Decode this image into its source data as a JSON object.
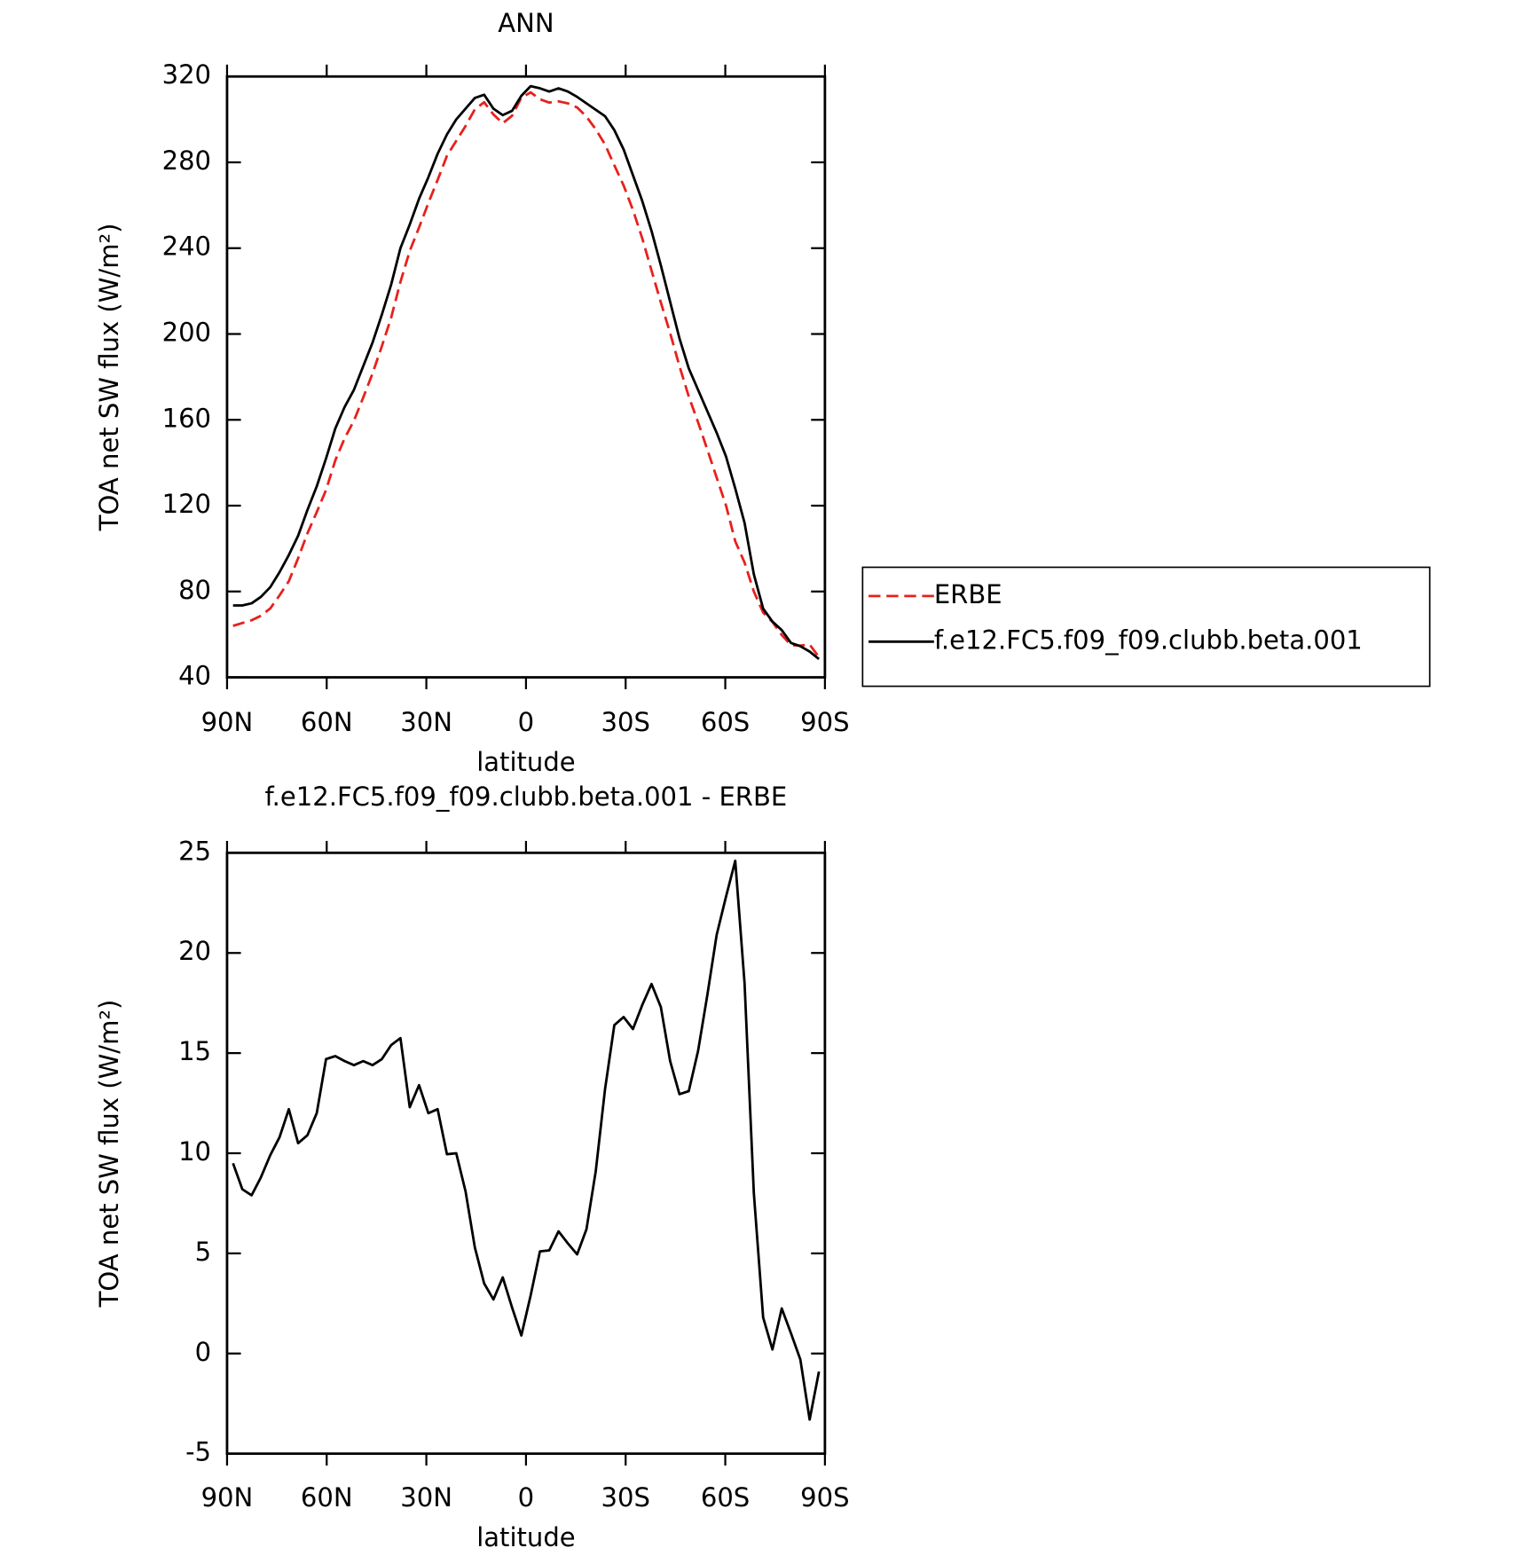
{
  "chart_data": [
    {
      "type": "line",
      "title": "ANN",
      "xlabel": "latitude",
      "ylabel": "TOA net SW flux (W/m²)",
      "x": [
        88.2,
        85.4,
        82.6,
        79.8,
        77,
        74.2,
        71.4,
        68.6,
        65.8,
        63,
        60.2,
        57.4,
        54.6,
        51.8,
        49,
        46.2,
        43.4,
        40.6,
        37.8,
        35,
        32.2,
        29.4,
        26.6,
        23.8,
        21,
        18.2,
        15.4,
        12.6,
        9.8,
        7,
        4.2,
        1.4,
        -1.4,
        -4.2,
        -7,
        -9.8,
        -12.6,
        -15.4,
        -18.2,
        -21,
        -23.8,
        -26.6,
        -29.4,
        -32.2,
        -35,
        -37.8,
        -40.6,
        -43.4,
        -46.2,
        -49,
        -51.8,
        -54.6,
        -57.4,
        -60.2,
        -63,
        -65.8,
        -68.6,
        -71.4,
        -74.2,
        -77,
        -79.8,
        -82.6,
        -85.4,
        -88.2
      ],
      "series": [
        {
          "name": "ERBE",
          "color": "#e8201c",
          "line_style": "dashed",
          "values": [
            64,
            65.3,
            66.6,
            68.7,
            72.1,
            78.2,
            84.8,
            95.5,
            107.1,
            117,
            127.3,
            141.15,
            151.4,
            159.6,
            170.4,
            181.6,
            194.3,
            207.6,
            224.25,
            238.7,
            249.6,
            261,
            271.8,
            283.05,
            290,
            296.9,
            304.7,
            308,
            302.3,
            298.2,
            301.7,
            310.1,
            312.6,
            309.4,
            307.85,
            308.4,
            307.5,
            305.55,
            301.3,
            295.4,
            288.3,
            278.6,
            269.2,
            257.8,
            244.6,
            229.55,
            214.7,
            200.4,
            185.05,
            170.9,
            158.9,
            146.1,
            133.1,
            120.2,
            103.4,
            93.5,
            80,
            70.2,
            65.8,
            59.75,
            55,
            54.8,
            55.3,
            49.4
          ]
        },
        {
          "name": "f.e12.FC5.f09_f09.clubb.beta.001",
          "color": "#000000",
          "line_style": "solid",
          "values": [
            73.5,
            73.5,
            74.5,
            77.5,
            82,
            89,
            97,
            106,
            118,
            129,
            142,
            156,
            166,
            174,
            185,
            196,
            209,
            223,
            240,
            251,
            263,
            273,
            284,
            293,
            300,
            305,
            310,
            311.5,
            305,
            302,
            304,
            311,
            315.5,
            314.5,
            313,
            314.5,
            313,
            310.5,
            307.5,
            304.5,
            301.5,
            295,
            286,
            274,
            262,
            248,
            232,
            215,
            198,
            184,
            174,
            164,
            154,
            143,
            128,
            112,
            88,
            72,
            66,
            62,
            56,
            54.5,
            52,
            48.5
          ]
        }
      ],
      "xlim": [
        90,
        -90
      ],
      "xticks": [
        {
          "value": 90,
          "label": "90N"
        },
        {
          "value": 60,
          "label": "60N"
        },
        {
          "value": 30,
          "label": "30N"
        },
        0,
        {
          "value": -30,
          "label": "30S"
        },
        {
          "value": -60,
          "label": "60S"
        },
        {
          "value": -90,
          "label": "90S"
        }
      ],
      "ylim": [
        40,
        320
      ],
      "yticks": [
        40,
        80,
        120,
        160,
        200,
        240,
        280,
        320
      ],
      "legend": "outside-right"
    },
    {
      "type": "line",
      "title": "f.e12.FC5.f09_f09.clubb.beta.001 - ERBE",
      "xlabel": "latitude",
      "ylabel": "TOA net SW flux (W/m²)",
      "x": [
        88.2,
        85.4,
        82.6,
        79.8,
        77,
        74.2,
        71.4,
        68.6,
        65.8,
        63,
        60.2,
        57.4,
        54.6,
        51.8,
        49,
        46.2,
        43.4,
        40.6,
        37.8,
        35,
        32.2,
        29.4,
        26.6,
        23.8,
        21,
        18.2,
        15.4,
        12.6,
        9.8,
        7,
        4.2,
        1.4,
        -1.4,
        -4.2,
        -7,
        -9.8,
        -12.6,
        -15.4,
        -18.2,
        -21,
        -23.8,
        -26.6,
        -29.4,
        -32.2,
        -35,
        -37.8,
        -40.6,
        -43.4,
        -46.2,
        -49,
        -51.8,
        -54.6,
        -57.4,
        -60.2,
        -63,
        -65.8,
        -68.6,
        -71.4,
        -74.2,
        -77,
        -79.8,
        -82.6,
        -85.4,
        -88.2
      ],
      "series": [
        {
          "color": "#000000",
          "line_style": "solid",
          "values": [
            9.5,
            8.2,
            7.9,
            8.8,
            9.9,
            10.8,
            12.2,
            10.5,
            10.9,
            12,
            14.7,
            14.85,
            14.6,
            14.4,
            14.6,
            14.4,
            14.7,
            15.4,
            15.75,
            12.3,
            13.4,
            12,
            12.2,
            9.95,
            10,
            8.1,
            5.3,
            3.5,
            2.7,
            3.8,
            2.3,
            0.9,
            2.9,
            5.1,
            5.15,
            6.1,
            5.5,
            4.95,
            6.2,
            9.1,
            13.2,
            16.4,
            16.8,
            16.2,
            17.4,
            18.45,
            17.3,
            14.6,
            12.95,
            13.1,
            15.1,
            17.9,
            20.9,
            22.8,
            24.6,
            18.5,
            8,
            1.8,
            0.2,
            2.25,
            1,
            -0.3,
            -3.3,
            -0.9
          ]
        }
      ],
      "xlim": [
        90,
        -90
      ],
      "xticks": [
        {
          "value": 90,
          "label": "90N"
        },
        {
          "value": 60,
          "label": "60N"
        },
        {
          "value": 30,
          "label": "30N"
        },
        0,
        {
          "value": -30,
          "label": "30S"
        },
        {
          "value": -60,
          "label": "60S"
        },
        {
          "value": -90,
          "label": "90S"
        }
      ],
      "ylim": [
        -5,
        25
      ],
      "yticks": [
        -5,
        0,
        5,
        10,
        15,
        20,
        25
      ]
    }
  ]
}
